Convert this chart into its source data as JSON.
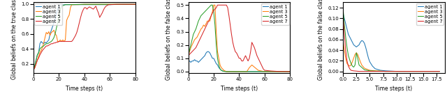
{
  "agents": [
    "agent 1",
    "agent 3",
    "agent 5",
    "agent 7"
  ],
  "colors": [
    "#1f77b4",
    "#ff7f0e",
    "#2ca02c",
    "#d62728"
  ],
  "plot1": {
    "xlabel": "Time steps (t)",
    "ylabel": "Global beliefs on the true class",
    "xlim": [
      0,
      80
    ],
    "ylim": [
      0.08,
      1.02
    ],
    "yticks": [
      0.2,
      0.4,
      0.6,
      0.8,
      1.0
    ]
  },
  "plot2": {
    "xlabel": "Time steps (t)",
    "ylabel": "Global beliefs on the false class",
    "xlim": [
      0,
      80
    ],
    "ylim": [
      -0.01,
      0.52
    ],
    "yticks": [
      0.0,
      0.1,
      0.2,
      0.3,
      0.4,
      0.5
    ]
  },
  "plot3": {
    "xlabel": "Time steps (t)",
    "ylabel": "Global beliefs on the false class",
    "xlim": [
      0,
      19
    ],
    "ylim": [
      -0.003,
      0.13
    ],
    "yticks": [
      0.0,
      0.02,
      0.04,
      0.06,
      0.08,
      0.1,
      0.12
    ],
    "xticks": [
      0.0,
      2.5,
      5.0,
      7.5,
      10.0,
      12.5,
      15.0,
      17.5
    ]
  }
}
